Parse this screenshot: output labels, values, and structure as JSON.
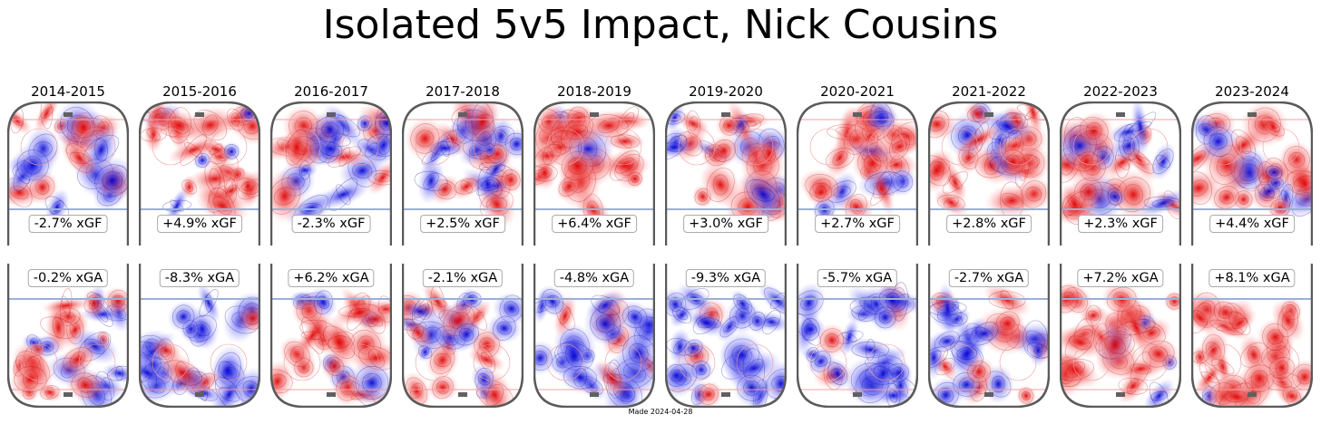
{
  "title": "Isolated 5v5 Impact, Nick Cousins",
  "footer": "Made 2024-04-28",
  "colors": {
    "positive": "#e00000",
    "negative": "#0000d0",
    "rink": "#5a5a5a",
    "blueline": "#9ab0d8",
    "faceoff": "#f0a0a0"
  },
  "chart_data": {
    "type": "heatmap",
    "title": "Isolated 5v5 Impact, Nick Cousins",
    "categories": [
      "2014-2015",
      "2015-2016",
      "2016-2017",
      "2017-2018",
      "2018-2019",
      "2019-2020",
      "2020-2021",
      "2021-2022",
      "2022-2023",
      "2023-2024"
    ],
    "series": [
      {
        "name": "xGF",
        "values": [
          -2.7,
          4.9,
          -2.3,
          2.5,
          6.4,
          3.0,
          2.7,
          2.8,
          2.3,
          4.4
        ],
        "labels": [
          "-2.7% xGF",
          "+4.9% xGF",
          "-2.3% xGF",
          "+2.5% xGF",
          "+6.4% xGF",
          "+3.0% xGF",
          "+2.7% xGF",
          "+2.8% xGF",
          "+2.3% xGF",
          "+4.4% xGF"
        ]
      },
      {
        "name": "xGA",
        "values": [
          -0.2,
          -8.3,
          6.2,
          -2.1,
          -4.8,
          -9.3,
          -5.7,
          -2.7,
          7.2,
          8.1
        ],
        "labels": [
          "-0.2% xGA",
          "-8.3% xGA",
          "+6.2% xGA",
          "-2.1% xGA",
          "-4.8% xGA",
          "-9.3% xGA",
          "-5.7% xGA",
          "-2.7% xGA",
          "+7.2% xGA",
          "+8.1% xGA"
        ]
      }
    ]
  }
}
